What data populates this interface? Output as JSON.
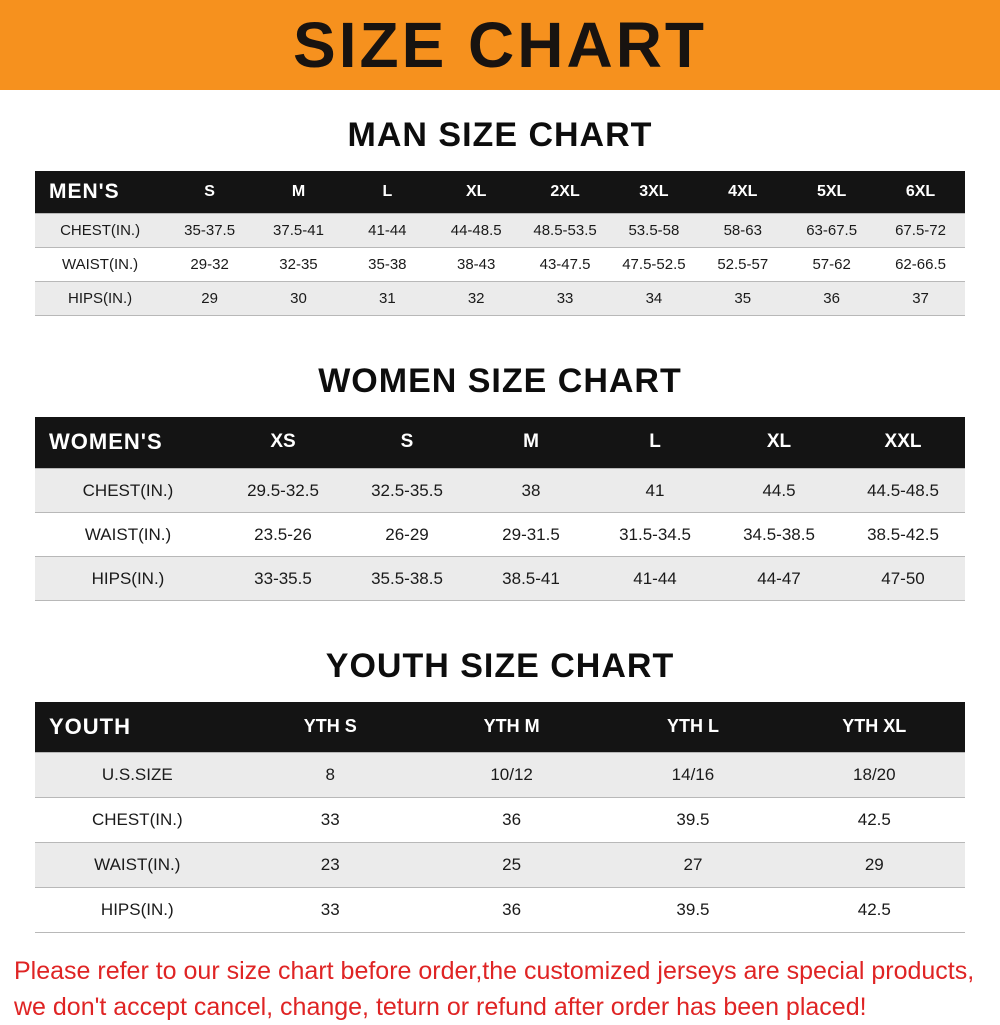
{
  "banner": {
    "title": "SIZE CHART",
    "bg_color": "#f6911e",
    "text_color": "#181310"
  },
  "chart_data": [
    {
      "type": "table",
      "title": "MAN SIZE CHART",
      "corner_label": "MEN'S",
      "columns": [
        "S",
        "M",
        "L",
        "XL",
        "2XL",
        "3XL",
        "4XL",
        "5XL",
        "6XL"
      ],
      "rows": [
        {
          "label": "CHEST(IN.)",
          "values": [
            "35-37.5",
            "37.5-41",
            "41-44",
            "44-48.5",
            "48.5-53.5",
            "53.5-58",
            "58-63",
            "63-67.5",
            "67.5-72"
          ]
        },
        {
          "label": "WAIST(IN.)",
          "values": [
            "29-32",
            "32-35",
            "35-38",
            "38-43",
            "43-47.5",
            "47.5-52.5",
            "52.5-57",
            "57-62",
            "62-66.5"
          ]
        },
        {
          "label": "HIPS(IN.)",
          "values": [
            "29",
            "30",
            "31",
            "32",
            "33",
            "34",
            "35",
            "36",
            "37"
          ]
        }
      ]
    },
    {
      "type": "table",
      "title": "WOMEN SIZE CHART",
      "corner_label": "WOMEN'S",
      "columns": [
        "XS",
        "S",
        "M",
        "L",
        "XL",
        "XXL"
      ],
      "rows": [
        {
          "label": "CHEST(IN.)",
          "values": [
            "29.5-32.5",
            "32.5-35.5",
            "38",
            "41",
            "44.5",
            "44.5-48.5"
          ]
        },
        {
          "label": "WAIST(IN.)",
          "values": [
            "23.5-26",
            "26-29",
            "29-31.5",
            "31.5-34.5",
            "34.5-38.5",
            "38.5-42.5"
          ]
        },
        {
          "label": "HIPS(IN.)",
          "values": [
            "33-35.5",
            "35.5-38.5",
            "38.5-41",
            "41-44",
            "44-47",
            "47-50"
          ]
        }
      ]
    },
    {
      "type": "table",
      "title": "YOUTH SIZE CHART",
      "corner_label": "YOUTH",
      "columns": [
        "YTH S",
        "YTH M",
        "YTH L",
        "YTH XL"
      ],
      "rows": [
        {
          "label": "U.S.SIZE",
          "values": [
            "8",
            "10/12",
            "14/16",
            "18/20"
          ]
        },
        {
          "label": "CHEST(IN.)",
          "values": [
            "33",
            "36",
            "39.5",
            "42.5"
          ]
        },
        {
          "label": "WAIST(IN.)",
          "values": [
            "23",
            "25",
            "27",
            "29"
          ]
        },
        {
          "label": "HIPS(IN.)",
          "values": [
            "33",
            "36",
            "39.5",
            "42.5"
          ]
        }
      ]
    }
  ],
  "footer": {
    "line1": "Please refer to our size chart before order,the customized jerseys are special products,",
    "line2": "we don't accept cancel, change, teturn or refund after order has been placed!"
  }
}
